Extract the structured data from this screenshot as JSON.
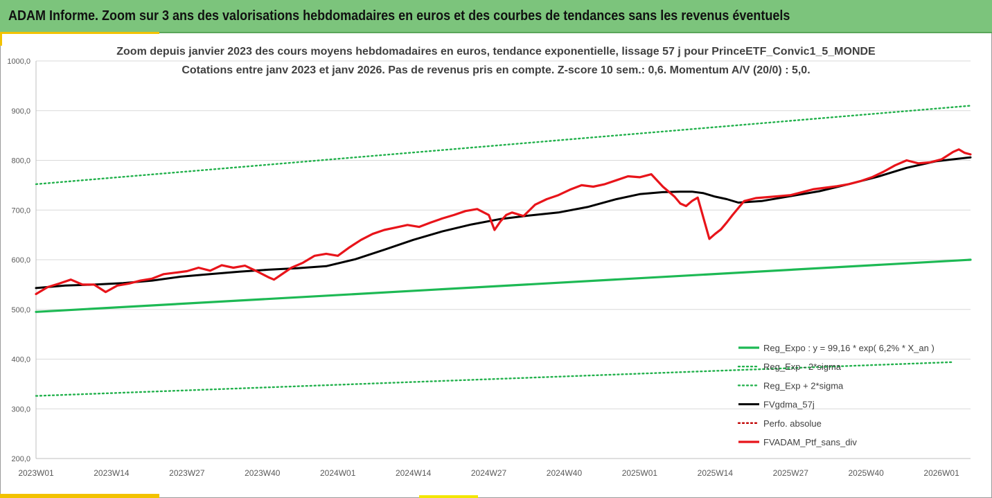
{
  "header": {
    "title": "ADAM Informe. Zoom sur 3 ans des valorisations hebdomadaires en euros et des courbes de tendances sans les revenus éventuels"
  },
  "colors": {
    "header_bg": "#7cc47c",
    "accent": "#f2c200",
    "trend_green": "#1db954",
    "dotted_green": "#22b14c",
    "smoothed": "#000000",
    "portfolio_red": "#e8141a",
    "perf_abs_red": "#c00000",
    "grid": "#d9d9d9",
    "axis_text": "#595959"
  },
  "chart_data": {
    "type": "line",
    "title_line1": "Zoom depuis janvier 2023 des cours moyens hebdomadaires  en euros, tendance exponentielle, lissage 57 j pour PrinceETF_Convic1_5_MONDE",
    "title_line2": "Cotations entre janv 2023 et janv 2026. Pas de revenus pris en compte. Z-score 10 sem.: 0,6. Momentum  A/V (20/0) : 5,0.",
    "xlabel": "",
    "ylabel": "",
    "ylim": [
      200,
      1000
    ],
    "x_range": [
      0,
      161
    ],
    "yticks": [
      200,
      300,
      400,
      500,
      600,
      700,
      800,
      900,
      1000
    ],
    "ytick_labels": [
      "200,0",
      "300,0",
      "400,0",
      "500,0",
      "600,0",
      "700,0",
      "800,0",
      "900,0",
      "1000,0"
    ],
    "xticks": [
      0,
      13,
      26,
      39,
      52,
      65,
      78,
      91,
      104,
      117,
      130,
      143,
      156
    ],
    "xtick_labels": [
      "2023W01",
      "2023W14",
      "2023W27",
      "2023W40",
      "2024W01",
      "2024W14",
      "2024W27",
      "2024W40",
      "2025W01",
      "2025W14",
      "2025W27",
      "2025W40",
      "2026W01"
    ],
    "grid": true,
    "legend_position": "bottom-right",
    "series": [
      {
        "name": "Reg_Expo : y = 99,16 * exp( 6,2% *  X_an )",
        "style": "solid-green",
        "x": [
          0,
          161
        ],
        "values": [
          495,
          600
        ]
      },
      {
        "name": "Reg_Exp - 2*sigma",
        "style": "dotted-green",
        "x": [
          0,
          158
        ],
        "values": [
          326,
          394
        ]
      },
      {
        "name": "Reg_Exp + 2*sigma",
        "style": "dotted-green",
        "x": [
          0,
          161
        ],
        "values": [
          752,
          910
        ]
      },
      {
        "name": "FVgdma_57j",
        "style": "solid-black",
        "x": [
          0,
          5,
          10,
          15,
          20,
          25,
          30,
          35,
          40,
          45,
          50,
          55,
          60,
          65,
          70,
          75,
          80,
          85,
          90,
          95,
          100,
          104,
          108,
          111,
          113,
          115,
          117,
          119,
          121,
          125,
          130,
          135,
          140,
          145,
          150,
          155,
          161
        ],
        "values": [
          543,
          548,
          550,
          553,
          558,
          566,
          571,
          576,
          580,
          583,
          587,
          601,
          620,
          640,
          657,
          671,
          682,
          689,
          695,
          706,
          722,
          732,
          736,
          737,
          737,
          734,
          727,
          722,
          715,
          718,
          728,
          738,
          752,
          767,
          785,
          798,
          806
        ]
      },
      {
        "name": "Perfo. absolue",
        "style": "dotted-red",
        "x": [],
        "values": []
      },
      {
        "name": "FVADAM_Ptf_sans_div",
        "style": "solid-red",
        "x": [
          0,
          2,
          4,
          6,
          8,
          10,
          12,
          14,
          16,
          18,
          20,
          22,
          24,
          26,
          28,
          30,
          32,
          34,
          36,
          38,
          40,
          41,
          42,
          44,
          46,
          48,
          50,
          52,
          54,
          56,
          58,
          60,
          62,
          64,
          66,
          68,
          70,
          72,
          74,
          76,
          78,
          79,
          80,
          81,
          82,
          84,
          86,
          88,
          90,
          92,
          94,
          96,
          98,
          100,
          102,
          104,
          106,
          108,
          110,
          111,
          112,
          113,
          114,
          116,
          117,
          118,
          119,
          120,
          122,
          124,
          126,
          128,
          130,
          132,
          134,
          136,
          138,
          140,
          142,
          144,
          146,
          148,
          150,
          152,
          154,
          156,
          158,
          159,
          160,
          161
        ],
        "values": [
          531,
          545,
          552,
          560,
          550,
          550,
          535,
          548,
          552,
          558,
          562,
          571,
          574,
          577,
          584,
          578,
          589,
          584,
          588,
          577,
          565,
          560,
          568,
          584,
          594,
          608,
          612,
          608,
          625,
          640,
          652,
          660,
          665,
          670,
          666,
          675,
          683,
          690,
          698,
          702,
          690,
          660,
          677,
          690,
          695,
          688,
          711,
          722,
          730,
          741,
          750,
          747,
          752,
          760,
          768,
          766,
          772,
          747,
          727,
          713,
          708,
          718,
          725,
          642,
          652,
          661,
          675,
          690,
          718,
          724,
          726,
          728,
          730,
          736,
          742,
          745,
          748,
          752,
          758,
          766,
          777,
          790,
          800,
          794,
          796,
          802,
          817,
          822,
          815,
          812
        ]
      }
    ]
  }
}
